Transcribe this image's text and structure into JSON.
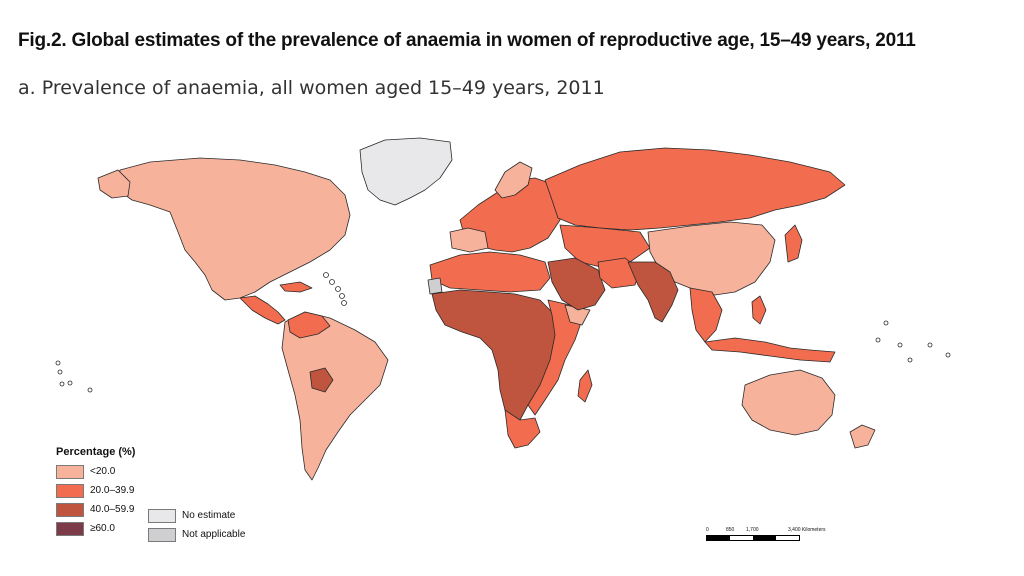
{
  "figure": {
    "title": "Fig.2. Global estimates of the prevalence of anaemia in women of reproductive age, 15–49 years, 2011",
    "subtitle": "a. Prevalence of anaemia, all women aged 15–49 years, 2011"
  },
  "legend": {
    "title": "Percentage (%)",
    "classes": [
      {
        "label": "<20.0",
        "color": "#f7b29b"
      },
      {
        "label": "20.0–39.9",
        "color": "#f26c4f"
      },
      {
        "label": "40.0–59.9",
        "color": "#c0553f"
      },
      {
        "label": "≥60.0",
        "color": "#7d3a48"
      }
    ],
    "extra": [
      {
        "label": "No estimate",
        "color": "#e8e8ea"
      },
      {
        "label": "Not applicable",
        "color": "#cfcfd2"
      }
    ]
  },
  "scale": {
    "ticks": [
      "0",
      "850",
      "1,700",
      "3,400 Kilometers"
    ]
  },
  "colors": {
    "ocean": "#ffffff",
    "border": "#2a2a2a"
  }
}
